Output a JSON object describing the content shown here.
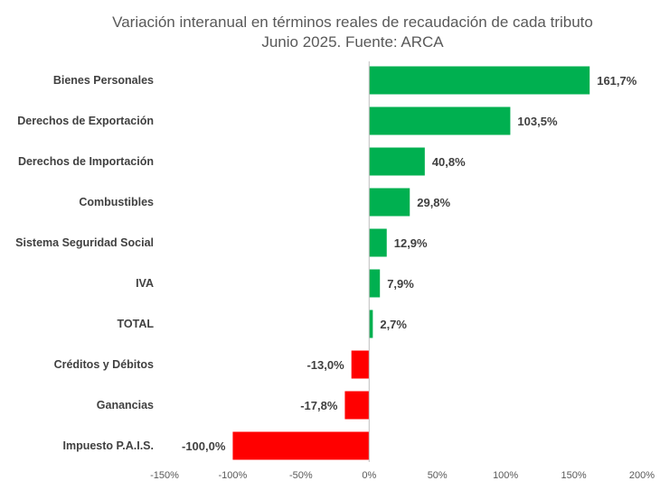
{
  "chart_data": {
    "type": "bar",
    "orientation": "horizontal",
    "title": "Variación interanual en términos reales de recaudación de cada tributo",
    "subtitle": "Junio 2025. Fuente: ARCA",
    "categories": [
      "Bienes Personales",
      "Derechos de Exportación",
      "Derechos de Importación",
      "Combustibles",
      "Sistema Seguridad Social",
      "IVA",
      "TOTAL",
      "Créditos y Débitos",
      "Ganancias",
      "Impuesto P.A.I.S."
    ],
    "values": [
      161.7,
      103.5,
      40.8,
      29.8,
      12.9,
      7.9,
      2.7,
      -13.0,
      -17.8,
      -100.0
    ],
    "value_labels": [
      "161,7%",
      "103,5%",
      "40,8%",
      "29,8%",
      "12,9%",
      "7,9%",
      "2,7%",
      "-13,0%",
      "-17,8%",
      "-100,0%"
    ],
    "xlim": [
      -150,
      200
    ],
    "xticks": [
      -150,
      -100,
      -50,
      0,
      50,
      100,
      150,
      200
    ],
    "xtick_labels": [
      "-150%",
      "-100%",
      "-50%",
      "0%",
      "50%",
      "100%",
      "150%",
      "200%"
    ],
    "grid": false,
    "legend": "none",
    "colors": {
      "positive": "#00b050",
      "negative": "#ff0000",
      "axis": "#bfbfbf",
      "text": "#404040"
    }
  }
}
